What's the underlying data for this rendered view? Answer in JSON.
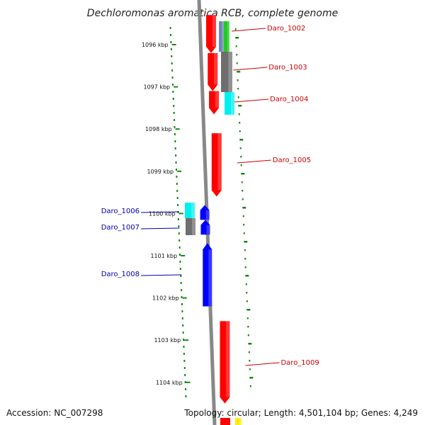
{
  "title": "Dechloromonas aromatica RCB, complete genome",
  "ticks": [
    {
      "label": "1096 kbp",
      "kbp": 1096
    },
    {
      "label": "1097 kbp",
      "kbp": 1097
    },
    {
      "label": "1098 kbp",
      "kbp": 1098
    },
    {
      "label": "1099 kbp",
      "kbp": 1099
    },
    {
      "label": "1100 kbp",
      "kbp": 1100
    },
    {
      "label": "1101 kbp",
      "kbp": 1101
    },
    {
      "label": "1102 kbp",
      "kbp": 1102
    },
    {
      "label": "1103 kbp",
      "kbp": 1103
    },
    {
      "label": "1104 kbp",
      "kbp": 1104
    }
  ],
  "genes": [
    {
      "id": "Daro_1002",
      "strand": "forward",
      "color": "#ff0000",
      "start_kbp": 1095.3,
      "end_kbp": 1096.2
    },
    {
      "id": "Daro_1003",
      "strand": "forward",
      "color": "#ff0000",
      "start_kbp": 1096.2,
      "end_kbp": 1097.1
    },
    {
      "id": "Daro_1004",
      "strand": "forward",
      "color": "#ff0000",
      "start_kbp": 1097.1,
      "end_kbp": 1097.65
    },
    {
      "id": "Daro_1005",
      "strand": "forward",
      "color": "#ff0000",
      "start_kbp": 1098.1,
      "end_kbp": 1099.6
    },
    {
      "id": "Daro_1006",
      "strand": "reverse",
      "color": "#0000ff",
      "start_kbp": 1099.8,
      "end_kbp": 1100.15
    },
    {
      "id": "Daro_1007",
      "strand": "reverse",
      "color": "#0000ff",
      "start_kbp": 1100.15,
      "end_kbp": 1100.5
    },
    {
      "id": "Daro_1008",
      "strand": "reverse",
      "color": "#0000ff",
      "start_kbp": 1100.7,
      "end_kbp": 1102.2
    },
    {
      "id": "Daro_1009",
      "strand": "forward",
      "color": "#ff0000",
      "start_kbp": 1102.55,
      "end_kbp": 1104.5
    }
  ],
  "colors": {
    "forward_label": "#cc0000",
    "reverse_label": "#0000aa",
    "backbone": "#888888",
    "gc_dots": "#118811",
    "cog_gray": "#6e6e6e",
    "cog_cyan": "#00f0f0",
    "cog_green": "#22cc22",
    "cog_steel": "#6d88b0",
    "cog_yellow": "#ffee00"
  },
  "footer": {
    "accession": "Accession: NC_007298",
    "summary": "Topology: circular; Length: 4,501,104 bp; Genes: 4,249"
  }
}
